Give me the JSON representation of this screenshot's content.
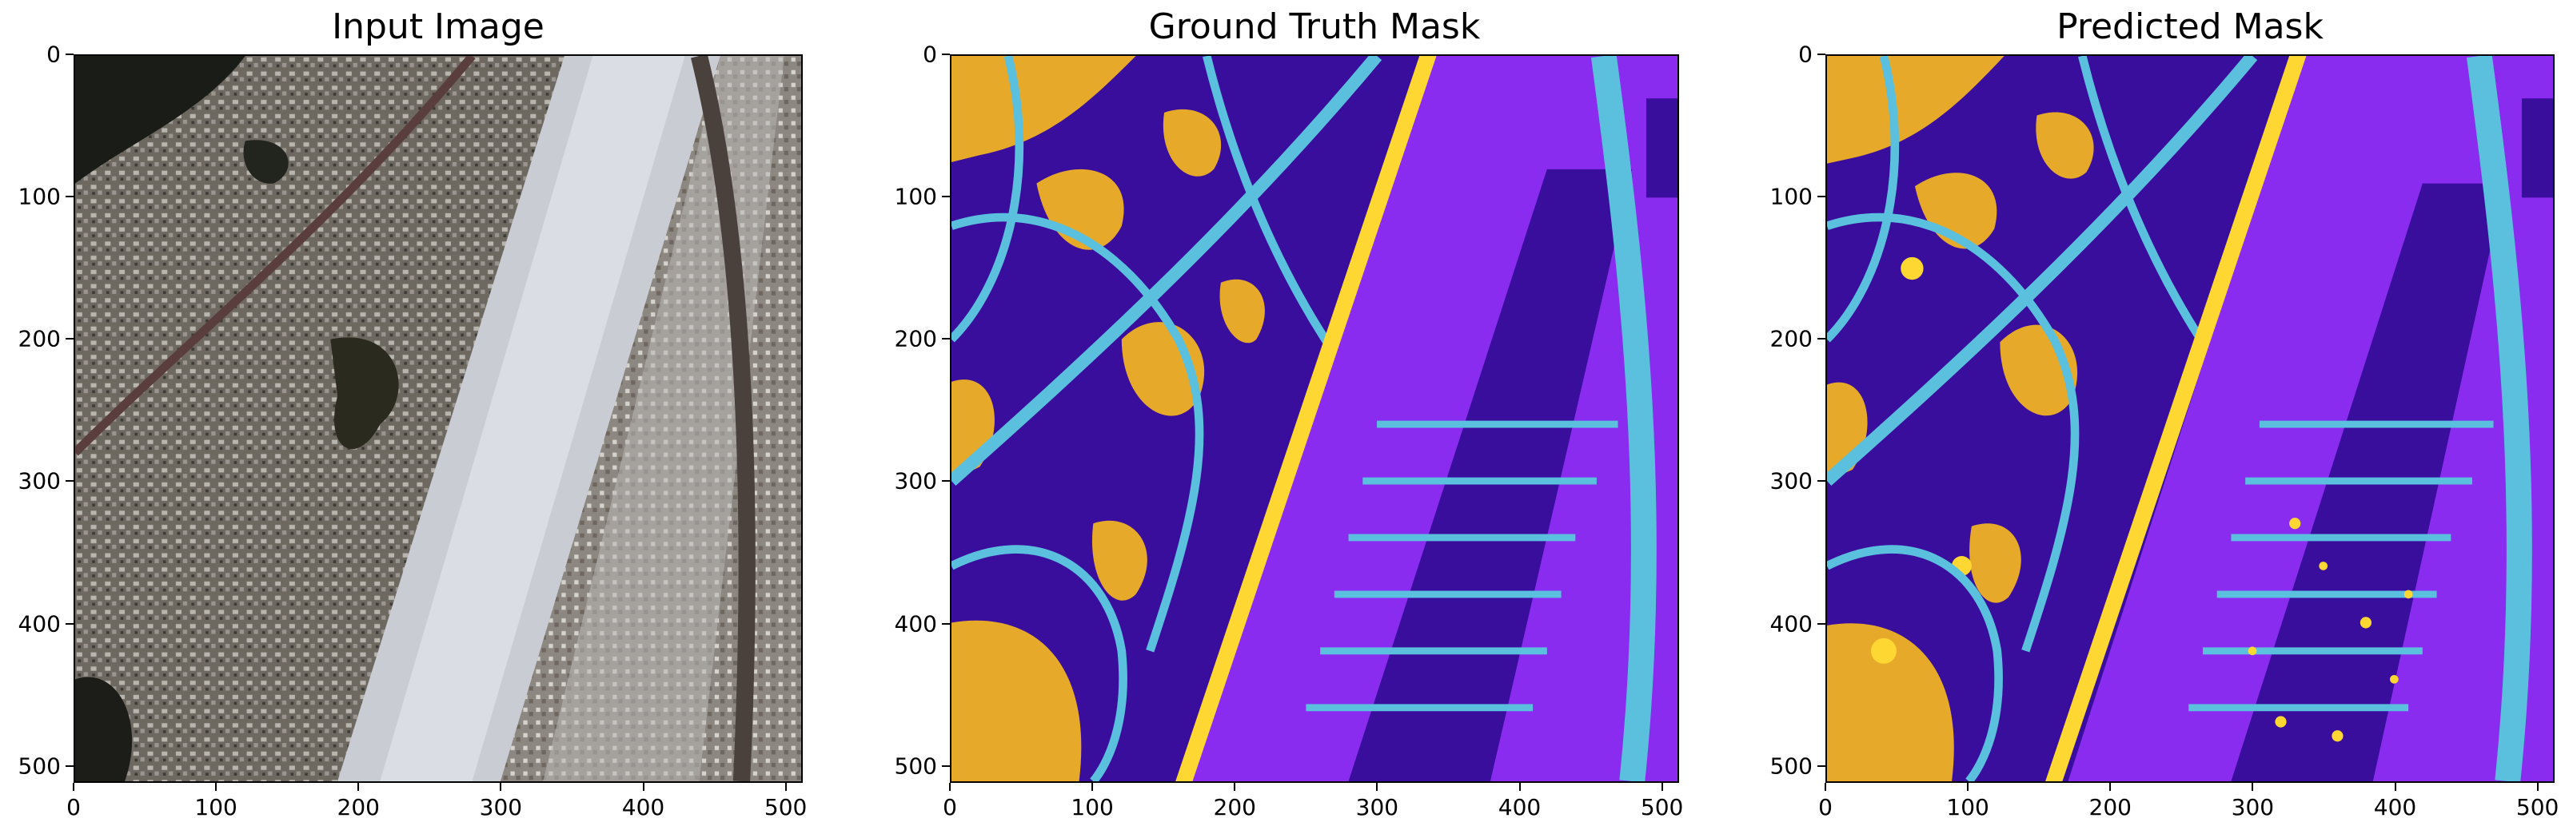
{
  "panels": [
    {
      "title": "Input Image"
    },
    {
      "title": "Ground Truth Mask"
    },
    {
      "title": "Predicted Mask"
    }
  ],
  "axis": {
    "x_ticks": [
      "0",
      "100",
      "200",
      "300",
      "400",
      "500"
    ],
    "y_ticks": [
      "0",
      "100",
      "200",
      "300",
      "400",
      "500"
    ],
    "range": [
      0,
      512
    ]
  },
  "colors": {
    "background_class": "#8A2BF0",
    "building_class": "#3A0E9C",
    "road_class": "#5BC0DE",
    "vegetation_class": "#E6A92A",
    "highlight_class": "#FFD733"
  }
}
